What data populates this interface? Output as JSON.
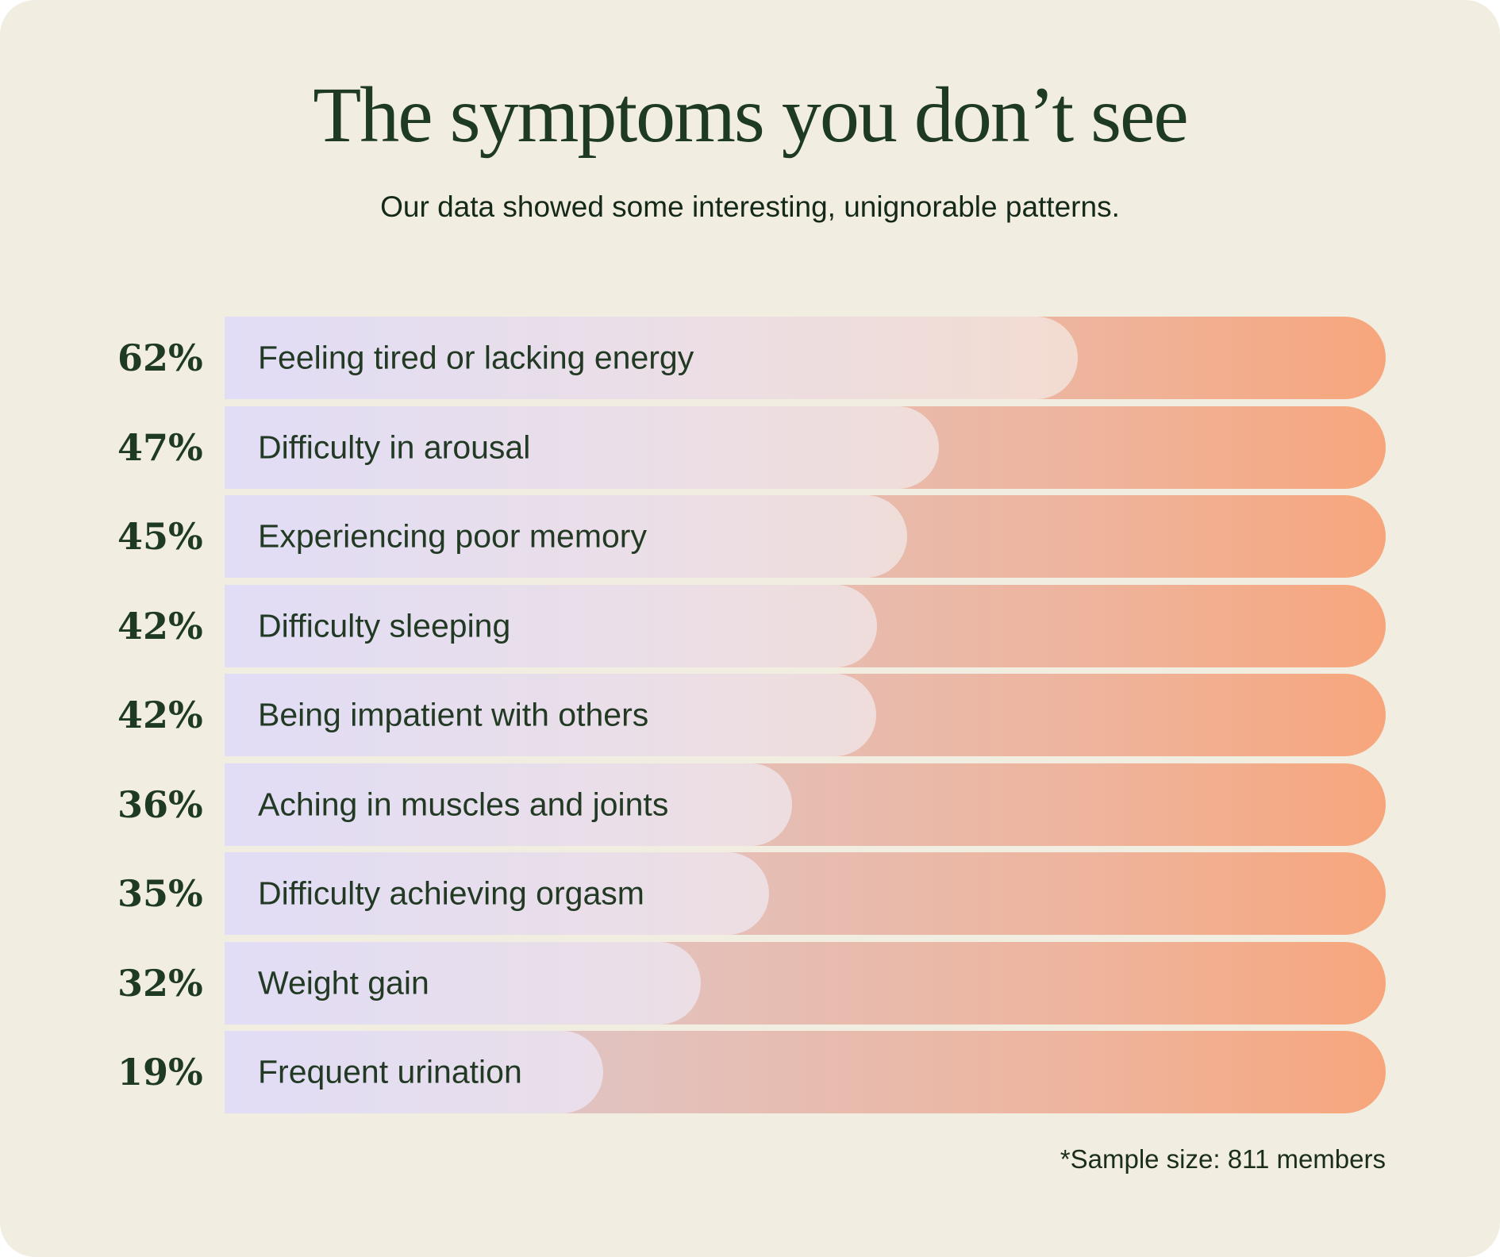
{
  "header": {
    "title": "The symptoms you don’t see",
    "subtitle": "Our data showed some interesting, unignorable patterns."
  },
  "chart_data": {
    "type": "bar",
    "orientation": "horizontal",
    "title": "The symptoms you don’t see",
    "subtitle": "Our data showed some interesting, unignorable patterns.",
    "categories": [
      "Feeling tired or lacking energy",
      "Difficulty in arousal",
      "Experiencing poor memory",
      "Difficulty sleeping",
      "Being impatient with others",
      "Aching in muscles and joints",
      "Difficulty achieving orgasm",
      "Weight gain",
      "Frequent urination"
    ],
    "values": [
      62,
      47,
      45,
      42,
      42,
      36,
      35,
      32,
      19
    ],
    "rows": [
      {
        "pct_label": "62%",
        "value": 62,
        "label": "Feeling tired or lacking energy",
        "fill_percent": 73.5
      },
      {
        "pct_label": "47%",
        "value": 47,
        "label": "Difficulty in arousal",
        "fill_percent": 61.5
      },
      {
        "pct_label": "45%",
        "value": 45,
        "label": "Experiencing poor memory",
        "fill_percent": 58.8
      },
      {
        "pct_label": "42%",
        "value": 42,
        "label": "Difficulty sleeping",
        "fill_percent": 56.2
      },
      {
        "pct_label": "42%",
        "value": 42,
        "label": "Being impatient with others",
        "fill_percent": 56.1
      },
      {
        "pct_label": "36%",
        "value": 36,
        "label": "Aching in muscles and joints",
        "fill_percent": 48.9
      },
      {
        "pct_label": "35%",
        "value": 35,
        "label": "Difficulty achieving orgasm",
        "fill_percent": 46.9
      },
      {
        "pct_label": "32%",
        "value": 32,
        "label": "Weight gain",
        "fill_percent": 41.0
      },
      {
        "pct_label": "19%",
        "value": 19,
        "label": "Frequent urination",
        "fill_percent": 32.6
      }
    ],
    "legend": null,
    "grid": false,
    "footnote": "*Sample size: 811 members",
    "colors": {
      "page_background": "#f1eee1",
      "title_text": "#1e3a22",
      "label_text": "#223a24",
      "bar_track_gradient": [
        "#ddc3c8",
        "#e2c2bf",
        "#eeb49c",
        "#f7a67c"
      ],
      "bar_fill_gradient": [
        "#e1ddf6",
        "#eadee8",
        "#f3dcd0",
        "#f6dbc9"
      ]
    }
  },
  "footer": {
    "note": "*Sample size: 811 members"
  }
}
